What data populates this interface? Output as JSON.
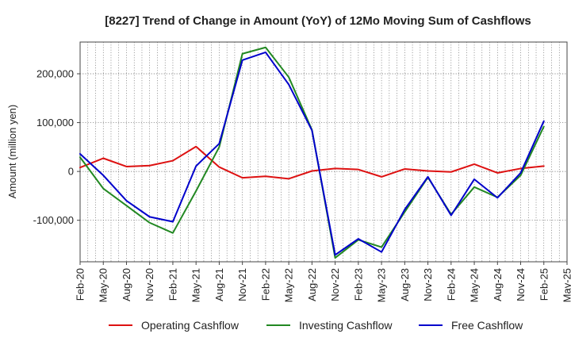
{
  "chart_data": {
    "type": "line",
    "title": "[8227]  Trend of Change in Amount (YoY) of 12Mo Moving Sum of Cashflows",
    "xlabel": "",
    "ylabel": "Amount (million yen)",
    "ylim": [
      -185000,
      265000
    ],
    "yticks": [
      -100000,
      0,
      100000,
      200000
    ],
    "ytick_labels": [
      "-100,000",
      "0",
      "100,000",
      "200,000"
    ],
    "categories": [
      "Feb-20",
      "May-20",
      "Aug-20",
      "Nov-20",
      "Feb-21",
      "May-21",
      "Aug-21",
      "Nov-21",
      "Feb-22",
      "May-22",
      "Aug-22",
      "Nov-22",
      "Feb-23",
      "May-23",
      "Aug-23",
      "Nov-23",
      "Feb-24",
      "May-24",
      "Aug-24",
      "Nov-24",
      "Feb-25",
      "May-25"
    ],
    "grid": true,
    "legend_position": "bottom",
    "series": [
      {
        "name": "Operating Cashflow",
        "color": "#dd1111",
        "values": [
          8000,
          27000,
          10000,
          12000,
          22000,
          51000,
          9000,
          -13000,
          -10000,
          -15000,
          1000,
          6000,
          4000,
          -11000,
          5000,
          1000,
          -1000,
          15000,
          -3000,
          6000,
          11000,
          null
        ]
      },
      {
        "name": "Investing Cashflow",
        "color": "#228822",
        "values": [
          29000,
          -35000,
          -70000,
          -105000,
          -126000,
          -40000,
          50000,
          241000,
          254000,
          193000,
          85000,
          -177000,
          -140000,
          -155000,
          -83000,
          -12000,
          -88000,
          -32000,
          -53000,
          -8000,
          92000,
          null
        ]
      },
      {
        "name": "Free Cashflow",
        "color": "#0000cc",
        "values": [
          36000,
          -8000,
          -60000,
          -93000,
          -103000,
          11000,
          57000,
          228000,
          244000,
          178000,
          84000,
          -171000,
          -138000,
          -165000,
          -78000,
          -11000,
          -90000,
          -16000,
          -54000,
          -3000,
          103000,
          null
        ]
      }
    ]
  }
}
